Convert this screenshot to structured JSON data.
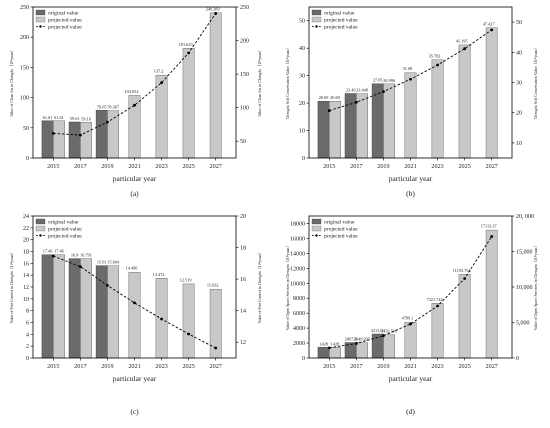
{
  "chart_data": [
    {
      "type": "bar",
      "categories": [
        "2015",
        "2017",
        "2019",
        "2021",
        "2023",
        "2025",
        "2027"
      ],
      "xlabel": "particular year",
      "ylabel": "Value of Clean Air in Chengdu（10⁸yuan）",
      "ylabel_right": "Value of Clean Air in Chengdu（10⁸yuan）",
      "ylim": [
        0,
        250
      ],
      "yticks": [
        0,
        50,
        100,
        150,
        200,
        250
      ],
      "ylim_right": [
        25,
        250
      ],
      "yticks_right": [
        50,
        100,
        150,
        200,
        250
      ],
      "legend": [
        "original value",
        "projected value",
        "projected value"
      ],
      "legend_position": "top-left",
      "series": [
        {
          "name": "original value",
          "type": "bar",
          "color": "#6b6b6b",
          "values": [
            61.61,
            59.61,
            79.05,
            null,
            null,
            null,
            null
          ],
          "labels": [
            "61.61",
            "59.61",
            "79.05",
            "",
            "",
            "",
            ""
          ]
        },
        {
          "name": "projected value",
          "type": "bar",
          "color": "#c8c8c8",
          "values": [
            61.61,
            59.16,
            78.367,
            103.652,
            137.2,
            181.625,
            240.383
          ],
          "labels": [
            "61.61",
            "59.16",
            "78.367",
            "103.652",
            "137.2",
            "181.625",
            "240.383"
          ]
        },
        {
          "name": "projected value",
          "type": "line",
          "axis": "right",
          "style": "dashed",
          "values": [
            61.61,
            59.16,
            78.367,
            103.652,
            137.2,
            181.625,
            240.383
          ]
        }
      ],
      "panel_label": "(a)"
    },
    {
      "type": "bar",
      "categories": [
        "2015",
        "2017",
        "2019",
        "2021",
        "2023",
        "2025",
        "2027"
      ],
      "xlabel": "particular year",
      "ylabel": "Chengdu Soil Conservation Value（10⁸yuan）",
      "ylabel_right": "Chengdu Soil Conservation Value（10⁸yuan）",
      "ylim": [
        0,
        55
      ],
      "yticks": [
        0,
        10,
        20,
        30,
        40,
        50
      ],
      "ylim_right": [
        5,
        55
      ],
      "yticks_right": [
        10,
        20,
        30,
        40,
        50
      ],
      "legend": [
        "original value",
        "projected value",
        "projected value"
      ],
      "legend_position": "top-left",
      "series": [
        {
          "name": "original value",
          "type": "bar",
          "color": "#6b6b6b",
          "values": [
            20.69,
            23.49,
            27.05,
            null,
            null,
            null,
            null
          ],
          "labels": [
            "20.69",
            "23.49",
            "27.05",
            "",
            "",
            "",
            ""
          ]
        },
        {
          "name": "projected value",
          "type": "bar",
          "color": "#c8c8c8",
          "values": [
            20.69,
            23.448,
            26.996,
            31.08,
            35.782,
            41.195,
            47.427
          ],
          "labels": [
            "20.69",
            "23.448",
            "26.996",
            "31.08",
            "35.782",
            "41.195",
            "47.427"
          ]
        },
        {
          "name": "projected value",
          "type": "line",
          "axis": "right",
          "style": "dashed",
          "values": [
            20.69,
            23.448,
            26.996,
            31.08,
            35.782,
            41.195,
            47.427
          ]
        }
      ],
      "panel_label": "(b)"
    },
    {
      "type": "bar",
      "categories": [
        "2015",
        "2017",
        "2019",
        "2021",
        "2023",
        "2025",
        "2027"
      ],
      "xlabel": "particular year",
      "ylabel": "Value of Pest Control in Chengdu（10⁸yuan）",
      "ylabel_right": "Value of Pest Control in Chengdu（10⁸yuan）",
      "ylim": [
        0,
        24
      ],
      "yticks": [
        0,
        2,
        4,
        6,
        8,
        10,
        12,
        14,
        16,
        18,
        20,
        22,
        24
      ],
      "ylim_right": [
        11,
        20
      ],
      "yticks_right": [
        12,
        14,
        16,
        18,
        20
      ],
      "legend": [
        "original value",
        "projected value",
        "projected value"
      ],
      "legend_position": "top-left",
      "series": [
        {
          "name": "original value",
          "type": "bar",
          "color": "#6b6b6b",
          "values": [
            17.46,
            16.8,
            15.61,
            null,
            null,
            null,
            null
          ],
          "labels": [
            "17.46",
            "16.8",
            "15.61",
            "",
            "",
            "",
            ""
          ]
        },
        {
          "name": "projected value",
          "type": "bar",
          "color": "#c8c8c8",
          "values": [
            17.46,
            16.791,
            15.604,
            14.496,
            13.472,
            12.519,
            11.632
          ],
          "labels": [
            "17.46",
            "16.791",
            "15.604",
            "14.496",
            "13.472",
            "12.519",
            "11.632"
          ]
        },
        {
          "name": "projected value",
          "type": "line",
          "axis": "right",
          "style": "dashed",
          "values": [
            17.46,
            16.791,
            15.604,
            14.496,
            13.472,
            12.519,
            11.632
          ]
        }
      ],
      "panel_label": "(c)"
    },
    {
      "type": "bar",
      "categories": [
        "2015",
        "2017",
        "2019",
        "2021",
        "2023",
        "2025",
        "2027"
      ],
      "xlabel": "particular year",
      "ylabel": "Value of Open Space Services in Chengdu（10⁸yuan）",
      "ylabel_right": "Value of Open Space Services in Chengdu（10⁸yuan）",
      "ylim": [
        0,
        19000
      ],
      "yticks": [
        0,
        2000,
        4000,
        6000,
        8000,
        10000,
        12000,
        14000,
        16000,
        18000
      ],
      "ylim_right": [
        0,
        20000
      ],
      "yticks_right": [
        0,
        5000,
        10000,
        15000,
        20000
      ],
      "ytick_labels_right": [
        "0",
        "5,000",
        "10,000",
        "15,000",
        "20, 000"
      ],
      "legend": [
        "original value",
        "projected value",
        "projected value"
      ],
      "legend_position": "top-left",
      "series": [
        {
          "name": "original value",
          "type": "bar",
          "color": "#6b6b6b",
          "values": [
            1428,
            2067.8,
            3213.04,
            null,
            null,
            null,
            null
          ],
          "labels": [
            "1428",
            "2067.8",
            "3213.04",
            "",
            "",
            "",
            ""
          ]
        },
        {
          "name": "projected value",
          "type": "bar",
          "color": "#c8c8c8",
          "values": [
            1428,
            2048.937,
            3132.516,
            4789.1,
            7321.742,
            11193.754,
            17113.37
          ],
          "labels": [
            "1428",
            "2048.937",
            "3132.516",
            "4789.1",
            "7321.742",
            "11193.754",
            "17113.37"
          ]
        },
        {
          "name": "projected value",
          "type": "line",
          "axis": "right",
          "style": "dashed",
          "values": [
            1428,
            2048.937,
            3132.516,
            4789.1,
            7321.742,
            11193.754,
            17113.37
          ]
        }
      ],
      "panel_label": "(d)"
    }
  ]
}
